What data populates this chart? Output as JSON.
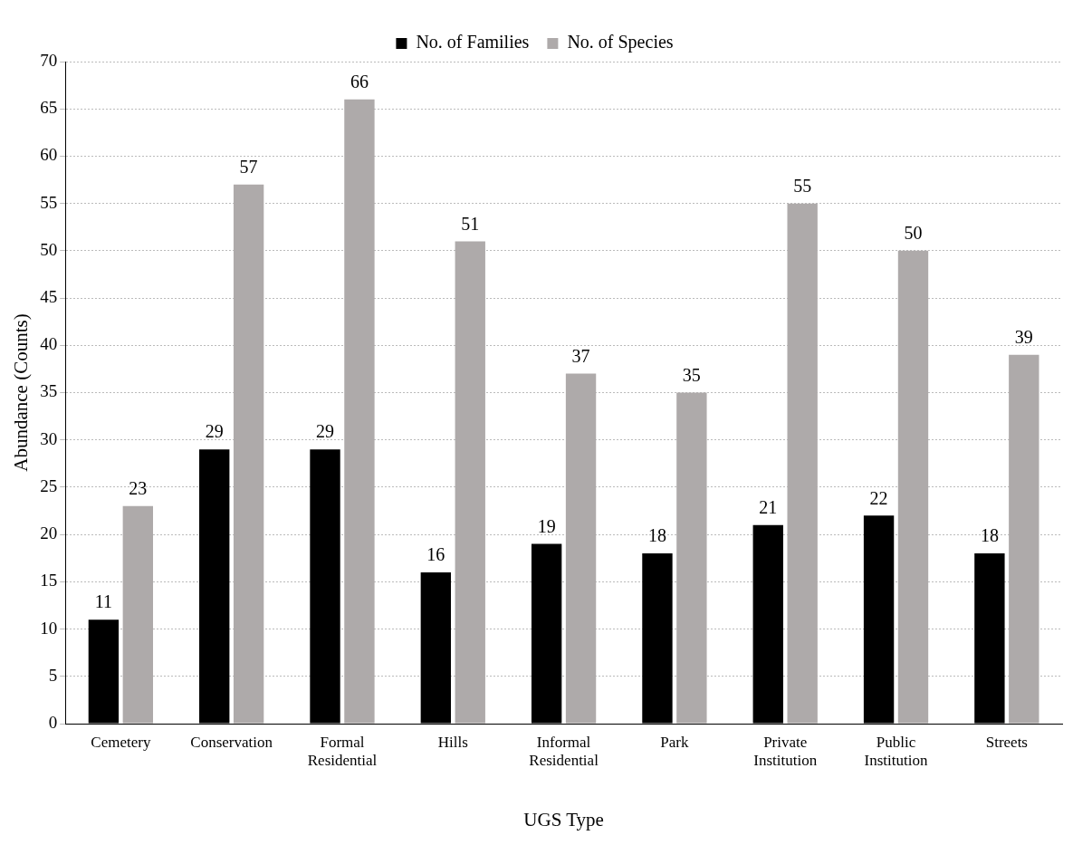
{
  "chart_data": {
    "type": "bar",
    "xlabel": "UGS Type",
    "ylabel": "Abundance (Counts)",
    "categories": [
      "Cemetery",
      "Conservation",
      "Formal Residential",
      "Hills",
      "Informal Residential",
      "Park",
      "Private Institution",
      "Public Institution",
      "Streets"
    ],
    "series": [
      {
        "name": "No. of Families",
        "color": "#000000",
        "values": [
          11,
          29,
          29,
          16,
          19,
          18,
          21,
          22,
          18
        ]
      },
      {
        "name": "No. of Species",
        "color": "#aeaaaa",
        "values": [
          23,
          57,
          66,
          51,
          37,
          35,
          55,
          50,
          39
        ]
      }
    ],
    "ylim": [
      0,
      70
    ],
    "yticks": [
      0,
      5,
      10,
      15,
      20,
      25,
      30,
      35,
      40,
      45,
      50,
      55,
      60,
      65,
      70
    ],
    "grid": "y",
    "legend": "top",
    "data_labels": true
  }
}
